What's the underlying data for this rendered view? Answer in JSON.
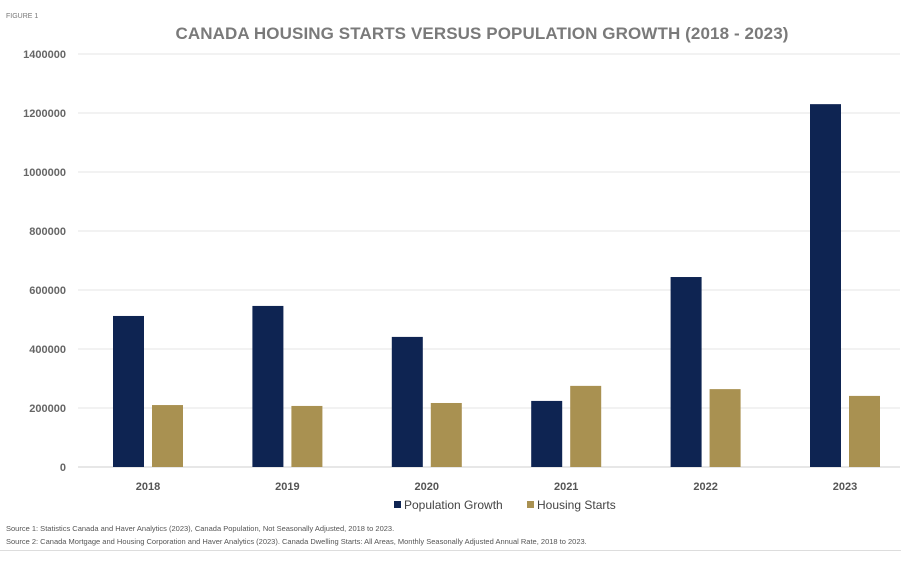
{
  "figure_label": "FIGURE 1",
  "chart_data": {
    "type": "bar",
    "title": "CANADA HOUSING STARTS VERSUS POPULATION GROWTH (2018 - 2023)",
    "categories": [
      "2018",
      "2019",
      "2020",
      "2021",
      "2022",
      "2023"
    ],
    "series": [
      {
        "name": "Population Growth",
        "color": "#0e2452",
        "values": [
          512000,
          546000,
          441000,
          224000,
          644000,
          1230000
        ]
      },
      {
        "name": "Housing Starts",
        "color": "#a99151",
        "values": [
          210000,
          207000,
          217000,
          275000,
          264000,
          241000
        ]
      }
    ],
    "ylim": [
      0,
      1400000
    ],
    "yticks": [
      "0",
      "200000",
      "400000",
      "600000",
      "800000",
      "1000000",
      "1200000",
      "1400000"
    ],
    "xlabel": "",
    "ylabel": "",
    "grid": true,
    "legend": "bottom-center"
  },
  "sources": [
    "Source 1: Statistics Canada and Haver Analytics (2023), Canada Population, Not Seasonally Adjusted, 2018 to 2023.",
    "Source 2: Canada Mortgage and Housing Corporation and Haver Analytics (2023). Canada Dwelling Starts: All Areas, Monthly Seasonally Adjusted Annual Rate, 2018 to 2023."
  ]
}
